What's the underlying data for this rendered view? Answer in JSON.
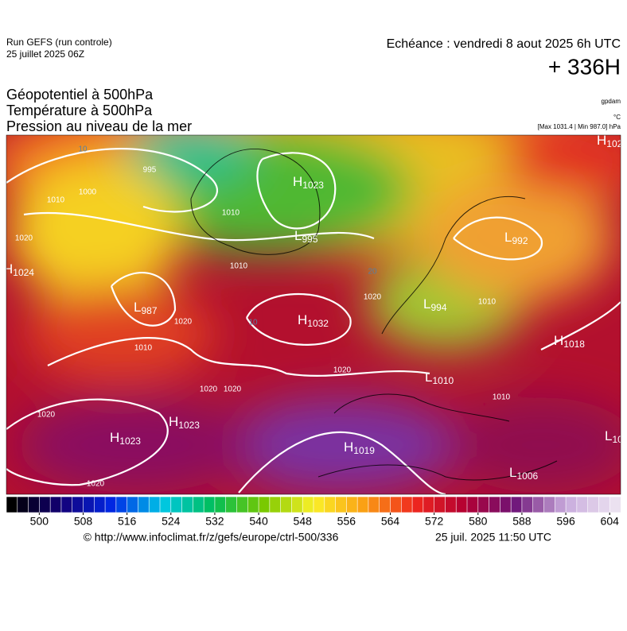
{
  "header": {
    "run": "Run GEFS (run controle)",
    "run_date": "25 juillet 2025 06Z",
    "valid": "Echéance : vendredi 8 aout 2025 6h UTC",
    "lead": "+ 336H",
    "fields": [
      "Géopotentiel à 500hPa",
      "Température à 500hPa",
      "Pression au niveau de la mer"
    ],
    "units": [
      "gpdam",
      "°C",
      "[Max 1031.4 | Min 987.0] hPa"
    ]
  },
  "map": {
    "centers": [
      {
        "kind": "H",
        "value": 1023
      },
      {
        "kind": "L",
        "value": 995
      },
      {
        "kind": "L",
        "value": 992
      },
      {
        "kind": "H",
        "value": 1024
      },
      {
        "kind": "L",
        "value": 987
      },
      {
        "kind": "H",
        "value": 1032
      },
      {
        "kind": "L",
        "value": 994
      },
      {
        "kind": "H",
        "value": 1018
      },
      {
        "kind": "L",
        "value": 1010
      },
      {
        "kind": "H",
        "value": 1023
      },
      {
        "kind": "H",
        "value": 1023
      },
      {
        "kind": "H",
        "value": 1019
      },
      {
        "kind": "L",
        "value": 1006
      },
      {
        "kind": "H",
        "value": 102
      },
      {
        "kind": "L",
        "value": 10
      }
    ],
    "isobar_labels": [
      1000,
      1010,
      1020,
      1010,
      1010,
      1020,
      1020,
      1020,
      1020,
      1020,
      1020,
      1010,
      1010,
      1020,
      1010,
      995
    ],
    "temperature_labels": [
      10,
      10,
      20
    ]
  },
  "colorbar": {
    "range": [
      494,
      606
    ],
    "ticks": [
      500,
      508,
      516,
      524,
      532,
      540,
      548,
      556,
      564,
      572,
      580,
      588,
      596,
      604
    ]
  },
  "footer": {
    "source": "© http://www.infoclimat.fr/z/gefs/europe/ctrl-500/336",
    "generated": "25 juil. 2025 11:50 UTC"
  }
}
